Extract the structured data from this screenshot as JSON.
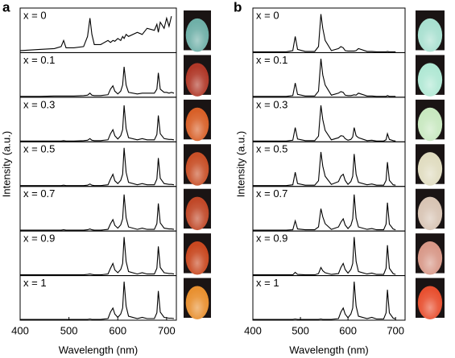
{
  "chart_data": [
    {
      "type": "line",
      "panel_label": "a",
      "xlabel": "Wavelength (nm)",
      "ylabel": "Intensity (a.u.)",
      "xlim": [
        400,
        720
      ],
      "xticks": [
        400,
        500,
        600,
        700
      ],
      "ylim": [
        0,
        1.1
      ],
      "color": "#000000",
      "x": [
        400,
        440,
        470,
        484,
        489,
        494,
        510,
        530,
        538,
        543,
        547,
        552,
        565,
        580,
        585,
        590,
        594,
        600,
        606,
        610,
        613,
        617,
        622,
        640,
        650,
        660,
        675,
        680,
        683,
        687,
        695,
        700,
        705,
        710,
        715
      ],
      "series": [
        {
          "name": "x = 0",
          "color": "#000000",
          "values": [
            0.05,
            0.08,
            0.1,
            0.15,
            0.3,
            0.12,
            0.12,
            0.15,
            0.4,
            0.85,
            0.45,
            0.2,
            0.2,
            0.3,
            0.25,
            0.3,
            0.28,
            0.35,
            0.3,
            0.4,
            0.35,
            0.45,
            0.4,
            0.5,
            0.45,
            0.6,
            0.55,
            0.7,
            0.5,
            0.75,
            0.6,
            0.85,
            0.65,
            0.9,
            null
          ]
        },
        {
          "name": "x = 0.1",
          "color": "#000000",
          "values": [
            0.02,
            0.02,
            0.03,
            0.03,
            0.03,
            0.03,
            0.03,
            0.04,
            0.05,
            0.1,
            0.05,
            0.04,
            0.04,
            0.06,
            0.2,
            0.28,
            0.15,
            0.08,
            0.15,
            0.3,
            0.75,
            0.3,
            0.12,
            0.08,
            0.1,
            0.1,
            0.1,
            0.2,
            0.6,
            0.2,
            0.12,
            0.12,
            0.1,
            0.12,
            0.1
          ]
        },
        {
          "name": "x = 0.3",
          "color": "#000000",
          "values": [
            0.02,
            0.02,
            0.02,
            0.02,
            0.03,
            0.02,
            0.02,
            0.03,
            0.04,
            0.08,
            0.04,
            0.03,
            0.03,
            0.05,
            0.2,
            0.3,
            0.15,
            0.07,
            0.15,
            0.3,
            0.9,
            0.33,
            0.1,
            0.05,
            0.08,
            0.05,
            0.05,
            0.18,
            0.65,
            0.2,
            0.08,
            0.07,
            0.06,
            0.06,
            0.05
          ]
        },
        {
          "name": "x = 0.5",
          "color": "#000000",
          "values": [
            0.02,
            0.02,
            0.02,
            0.02,
            0.03,
            0.02,
            0.02,
            0.02,
            0.03,
            0.06,
            0.03,
            0.02,
            0.02,
            0.04,
            0.18,
            0.3,
            0.14,
            0.07,
            0.15,
            0.3,
            0.95,
            0.35,
            0.1,
            0.04,
            0.07,
            0.04,
            0.04,
            0.18,
            0.7,
            0.2,
            0.07,
            0.06,
            0.05,
            0.05,
            0.04
          ]
        },
        {
          "name": "x = 0.7",
          "color": "#000000",
          "values": [
            0.02,
            0.02,
            0.02,
            0.02,
            0.03,
            0.02,
            0.02,
            0.02,
            0.03,
            0.05,
            0.03,
            0.02,
            0.02,
            0.04,
            0.18,
            0.28,
            0.14,
            0.07,
            0.15,
            0.3,
            0.9,
            0.33,
            0.1,
            0.04,
            0.07,
            0.04,
            0.04,
            0.18,
            0.68,
            0.2,
            0.07,
            0.06,
            0.05,
            0.05,
            0.04
          ]
        },
        {
          "name": "x = 0.9",
          "color": "#000000",
          "values": [
            0.02,
            0.02,
            0.02,
            0.02,
            0.02,
            0.02,
            0.02,
            0.02,
            0.03,
            0.04,
            0.03,
            0.02,
            0.02,
            0.04,
            0.18,
            0.3,
            0.14,
            0.07,
            0.15,
            0.3,
            0.95,
            0.35,
            0.1,
            0.04,
            0.07,
            0.04,
            0.04,
            0.18,
            0.72,
            0.2,
            0.07,
            0.06,
            0.05,
            0.05,
            0.04
          ]
        },
        {
          "name": "x = 1",
          "color": "#000000",
          "values": [
            0.02,
            0.02,
            0.02,
            0.02,
            0.02,
            0.02,
            0.02,
            0.02,
            0.02,
            0.03,
            0.02,
            0.02,
            0.02,
            0.04,
            0.2,
            0.3,
            0.15,
            0.07,
            0.15,
            0.3,
            0.95,
            0.35,
            0.1,
            0.04,
            0.07,
            0.04,
            0.04,
            0.18,
            0.72,
            0.2,
            0.07,
            0.06,
            0.05,
            0.05,
            0.04
          ]
        }
      ]
    },
    {
      "type": "line",
      "panel_label": "b",
      "xlabel": "Wavelength (nm)",
      "ylabel": "Intensity (a.u.)",
      "xlim": [
        400,
        720
      ],
      "xticks": [
        400,
        500,
        600,
        700
      ],
      "ylim": [
        0,
        1.1
      ],
      "color": "#000000",
      "x": [
        400,
        440,
        470,
        484,
        489,
        494,
        510,
        530,
        538,
        543,
        547,
        552,
        565,
        580,
        585,
        590,
        594,
        600,
        606,
        610,
        613,
        617,
        622,
        640,
        650,
        660,
        675,
        680,
        683,
        687,
        695,
        700,
        705,
        710,
        715
      ],
      "series": [
        {
          "name": "x = 0",
          "color": "#000000",
          "values": [
            0.02,
            0.02,
            0.02,
            0.05,
            0.4,
            0.08,
            0.03,
            0.03,
            0.15,
            0.95,
            0.6,
            0.3,
            0.05,
            0.1,
            0.15,
            0.12,
            0.05,
            0.04,
            0.04,
            0.04,
            0.04,
            0.05,
            0.1,
            0.03,
            0.03,
            0.02,
            0.02,
            0.02,
            0.03,
            0.02,
            0.02,
            0.02,
            null,
            null,
            null
          ]
        },
        {
          "name": "x = 0.1",
          "color": "#000000",
          "values": [
            0.02,
            0.02,
            0.02,
            0.04,
            0.35,
            0.07,
            0.03,
            0.03,
            0.15,
            0.95,
            0.55,
            0.3,
            0.05,
            0.1,
            0.14,
            0.12,
            0.05,
            0.04,
            0.04,
            0.05,
            0.06,
            0.05,
            0.1,
            0.03,
            0.03,
            0.02,
            0.02,
            0.02,
            0.04,
            0.02,
            0.02,
            0.02,
            null,
            null,
            null
          ]
        },
        {
          "name": "x = 0.3",
          "color": "#000000",
          "values": [
            0.02,
            0.02,
            0.02,
            0.04,
            0.35,
            0.07,
            0.03,
            0.03,
            0.14,
            0.9,
            0.55,
            0.28,
            0.05,
            0.1,
            0.15,
            0.14,
            0.08,
            0.04,
            0.06,
            0.12,
            0.35,
            0.15,
            0.1,
            0.03,
            0.04,
            0.02,
            0.02,
            0.05,
            0.2,
            0.06,
            0.03,
            0.02,
            null,
            null,
            null
          ]
        },
        {
          "name": "x = 0.5",
          "color": "#000000",
          "values": [
            0.02,
            0.02,
            0.02,
            0.04,
            0.35,
            0.07,
            0.03,
            0.03,
            0.14,
            0.85,
            0.5,
            0.25,
            0.05,
            0.12,
            0.25,
            0.3,
            0.15,
            0.05,
            0.12,
            0.25,
            0.8,
            0.3,
            0.1,
            0.04,
            0.06,
            0.03,
            0.03,
            0.15,
            0.6,
            0.15,
            0.04,
            0.03,
            null,
            null,
            null
          ]
        },
        {
          "name": "x = 0.7",
          "color": "#000000",
          "values": [
            0.02,
            0.02,
            0.02,
            0.03,
            0.25,
            0.05,
            0.03,
            0.03,
            0.1,
            0.55,
            0.35,
            0.18,
            0.04,
            0.1,
            0.22,
            0.3,
            0.15,
            0.06,
            0.14,
            0.3,
            0.9,
            0.32,
            0.1,
            0.04,
            0.06,
            0.03,
            0.03,
            0.17,
            0.7,
            0.17,
            0.05,
            0.03,
            null,
            null,
            null
          ]
        },
        {
          "name": "x = 0.9",
          "color": "#000000",
          "values": [
            0.02,
            0.02,
            0.02,
            0.02,
            0.08,
            0.03,
            0.02,
            0.02,
            0.05,
            0.2,
            0.12,
            0.07,
            0.03,
            0.05,
            0.2,
            0.3,
            0.15,
            0.06,
            0.15,
            0.3,
            0.95,
            0.35,
            0.1,
            0.04,
            0.06,
            0.03,
            0.03,
            0.18,
            0.75,
            0.18,
            0.05,
            0.03,
            null,
            null,
            null
          ]
        },
        {
          "name": "x = 1",
          "color": "#000000",
          "values": [
            0.02,
            0.02,
            0.02,
            0.02,
            0.03,
            0.02,
            0.02,
            0.02,
            0.02,
            0.03,
            0.02,
            0.02,
            0.02,
            0.04,
            0.2,
            0.3,
            0.15,
            0.06,
            0.15,
            0.3,
            0.95,
            0.35,
            0.1,
            0.04,
            0.07,
            0.03,
            0.03,
            0.18,
            0.75,
            0.18,
            0.05,
            0.03,
            null,
            null,
            null
          ]
        }
      ]
    }
  ]
}
